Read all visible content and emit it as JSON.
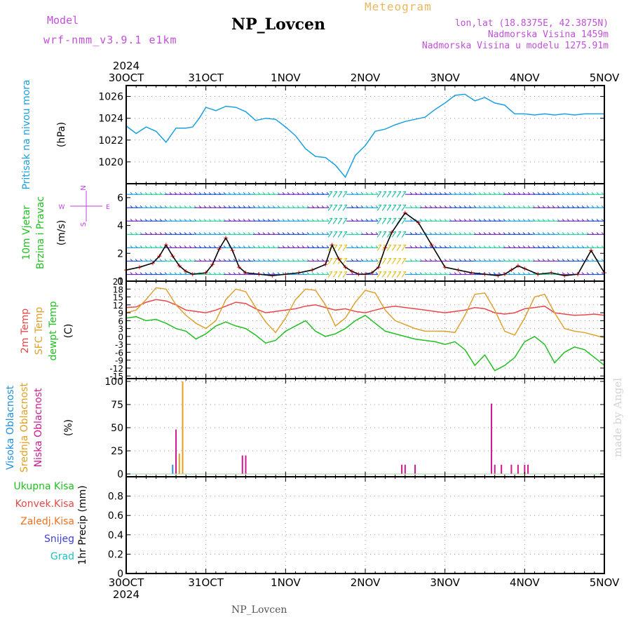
{
  "header": {
    "model_label": "Model",
    "model_name": "wrf-nmm_v3.9.1  e1km",
    "title": "NP_Lovcen",
    "meteogram_label": "Meteogram",
    "lonlat": "lon,lat (18.8375E, 42.3875N)",
    "elevation": "Nadmorska Visina 1459m",
    "model_elevation": "Nadmorska Visina u modelu 1275.91m"
  },
  "footer": {
    "station": "NP_Lovcen",
    "credit": "made by Angel"
  },
  "time_axis": {
    "year": "2024",
    "labels": [
      "30OCT",
      "31OCT",
      "1NOV",
      "2NOV",
      "3NOV",
      "4NOV",
      "5NOV"
    ]
  },
  "colors": {
    "pressure": "#1aa0e0",
    "temp_2m": "#e84848",
    "sfc_temp": "#e0a030",
    "dewpt": "#20c020",
    "high_cloud": "#2090e0",
    "mid_cloud": "#e0a020",
    "low_cloud": "#d01890",
    "wind_label": "#20c020",
    "wind_compass": "#c040e0"
  },
  "chart_data": [
    {
      "type": "line",
      "name": "pressure",
      "ylabel_parts": [
        "Pritisak na nivou mora"
      ],
      "unit": "(hPa)",
      "ylim": [
        1018,
        1027
      ],
      "yticks": [
        1020,
        1022,
        1024,
        1026
      ],
      "xlim": [
        0,
        144
      ],
      "grid": true,
      "series": [
        {
          "key": "pressure",
          "x": [
            0,
            3,
            6,
            9,
            12,
            15,
            18,
            20,
            22,
            24,
            27,
            30,
            33,
            36,
            39,
            42,
            45,
            48,
            51,
            54,
            57,
            60,
            63,
            66,
            69,
            72,
            75,
            78,
            81,
            84,
            87,
            90,
            93,
            96,
            99,
            102,
            105,
            108,
            111,
            114,
            117,
            120,
            123,
            126,
            129,
            132,
            135,
            138,
            141,
            144
          ],
          "y": [
            1023.3,
            1022.6,
            1023.2,
            1022.8,
            1021.8,
            1023.1,
            1023.1,
            1023.2,
            1024.0,
            1025.0,
            1024.7,
            1025.1,
            1025.0,
            1024.6,
            1023.8,
            1024.0,
            1023.9,
            1023.2,
            1022.4,
            1021.2,
            1020.5,
            1020.4,
            1019.7,
            1018.6,
            1020.6,
            1021.5,
            1022.8,
            1023.0,
            1023.4,
            1023.7,
            1023.9,
            1024.1,
            1024.8,
            1025.4,
            1026.1,
            1026.2,
            1025.6,
            1025.9,
            1025.4,
            1025.2,
            1024.4,
            1024.4,
            1024.3,
            1024.4,
            1024.3,
            1024.4,
            1024.3,
            1024.4,
            1024.4,
            1024.4
          ]
        }
      ]
    },
    {
      "type": "line",
      "name": "wind",
      "ylabel_parts": [
        "10m Vjetar",
        "Brzina i Pravac"
      ],
      "unit": "(m/s)",
      "compass": {
        "n": "N",
        "s": "S",
        "w": "W",
        "e": "E"
      },
      "ylim": [
        0,
        7
      ],
      "yticks": [
        0,
        2,
        4,
        6
      ],
      "xlim": [
        0,
        144
      ],
      "grid": false,
      "series": [
        {
          "key": "wind_speed",
          "x": [
            0,
            4,
            8,
            10,
            12,
            14,
            16,
            18,
            20,
            24,
            26,
            28,
            30,
            32,
            34,
            36,
            40,
            44,
            48,
            52,
            56,
            60,
            62,
            64,
            66,
            68,
            70,
            72,
            74,
            76,
            78,
            80,
            84,
            88,
            92,
            96,
            100,
            104,
            108,
            112,
            114,
            116,
            118,
            120,
            124,
            128,
            132,
            136,
            140,
            144
          ],
          "y": [
            0.8,
            1.0,
            1.3,
            1.8,
            2.6,
            1.8,
            1.1,
            0.7,
            0.5,
            0.6,
            1.2,
            2.3,
            3.1,
            2.2,
            1.0,
            0.6,
            0.5,
            0.4,
            0.5,
            0.6,
            0.8,
            1.2,
            2.6,
            1.6,
            1.0,
            0.7,
            0.5,
            0.5,
            0.6,
            1.0,
            2.4,
            3.5,
            4.9,
            4.2,
            2.6,
            1.0,
            0.8,
            0.6,
            0.5,
            0.4,
            0.5,
            0.8,
            1.1,
            0.9,
            0.5,
            0.6,
            0.4,
            0.5,
            2.2,
            0.6
          ]
        }
      ]
    },
    {
      "type": "line",
      "name": "temperature",
      "ylabel_parts": [
        "2m Temp",
        "SFC Temp",
        "dewpt Temp"
      ],
      "unit": "(C)",
      "ylim": [
        -16,
        21
      ],
      "yticks": [
        21,
        18,
        15,
        12,
        9,
        6,
        3,
        0,
        -3,
        -6,
        -9,
        -12,
        -15
      ],
      "xlim": [
        0,
        144
      ],
      "grid": true,
      "series": [
        {
          "key": "temp_2m",
          "x": [
            0,
            3,
            6,
            9,
            12,
            15,
            18,
            21,
            24,
            27,
            30,
            33,
            36,
            39,
            42,
            45,
            48,
            51,
            54,
            57,
            60,
            63,
            66,
            69,
            72,
            75,
            78,
            81,
            84,
            87,
            90,
            93,
            96,
            99,
            102,
            105,
            108,
            111,
            114,
            117,
            120,
            123,
            126,
            129,
            132,
            135,
            138,
            141,
            144
          ],
          "y": [
            11.0,
            11.2,
            13.0,
            14.0,
            13.5,
            12.0,
            10.0,
            9.5,
            9.0,
            10.0,
            11.5,
            13.0,
            12.5,
            10.5,
            9.0,
            9.5,
            10.0,
            10.5,
            11.5,
            12.0,
            11.0,
            10.0,
            10.5,
            9.5,
            9.0,
            10.0,
            11.0,
            11.5,
            11.0,
            10.5,
            10.0,
            9.5,
            9.0,
            9.5,
            10.0,
            11.0,
            10.5,
            9.0,
            8.5,
            9.0,
            10.5,
            11.0,
            11.5,
            9.0,
            8.5,
            8.0,
            8.2,
            8.5,
            8.0
          ]
        },
        {
          "key": "sfc_temp",
          "x": [
            0,
            3,
            6,
            9,
            12,
            15,
            18,
            21,
            24,
            27,
            30,
            33,
            36,
            39,
            42,
            45,
            48,
            51,
            54,
            57,
            60,
            63,
            66,
            69,
            72,
            75,
            78,
            81,
            84,
            87,
            90,
            93,
            96,
            99,
            102,
            105,
            108,
            111,
            114,
            117,
            120,
            123,
            126,
            129,
            132,
            135,
            138,
            141,
            144
          ],
          "y": [
            9.0,
            10.0,
            14.0,
            18.5,
            18.0,
            12.0,
            8.0,
            5.0,
            3.0,
            6.0,
            14.0,
            18.0,
            17.0,
            11.0,
            5.5,
            1.5,
            7.0,
            14.0,
            18.0,
            17.5,
            12.0,
            4.0,
            7.0,
            13.0,
            17.5,
            16.5,
            10.0,
            6.0,
            4.5,
            3.0,
            2.0,
            2.0,
            2.0,
            1.5,
            8.0,
            16.0,
            16.5,
            10.0,
            2.0,
            0.5,
            7.0,
            15.0,
            16.0,
            9.0,
            3.0,
            2.0,
            1.5,
            0.5,
            -0.5
          ]
        },
        {
          "key": "dewpt",
          "x": [
            0,
            3,
            6,
            9,
            12,
            15,
            18,
            21,
            24,
            27,
            30,
            33,
            36,
            39,
            42,
            45,
            48,
            51,
            54,
            57,
            60,
            63,
            66,
            69,
            72,
            75,
            78,
            81,
            84,
            87,
            90,
            93,
            96,
            99,
            102,
            105,
            108,
            111,
            114,
            117,
            120,
            123,
            126,
            129,
            132,
            135,
            138,
            141,
            144
          ],
          "y": [
            7.0,
            7.5,
            6.0,
            6.5,
            5.0,
            3.0,
            2.0,
            -1.0,
            1.0,
            4.0,
            5.5,
            4.0,
            3.0,
            0.5,
            -2.5,
            -1.5,
            2.0,
            4.0,
            6.0,
            2.0,
            0.0,
            1.0,
            3.0,
            6.0,
            8.0,
            5.0,
            2.0,
            1.0,
            0.0,
            -1.0,
            -1.5,
            -2.0,
            -3.0,
            -2.0,
            -5.0,
            -11.0,
            -7.0,
            -13.0,
            -11.0,
            -8.0,
            -2.0,
            0.0,
            -3.0,
            -10.0,
            -6.0,
            -4.0,
            -5.0,
            -8.0,
            -11.0
          ]
        }
      ]
    },
    {
      "type": "bar",
      "name": "cloud",
      "ylabel_parts": [
        "Visoka Oblacnost",
        "Srednja Oblacnost",
        "Niska Oblacnost"
      ],
      "unit": "(%)",
      "ylim": [
        -3,
        103
      ],
      "yticks": [
        0,
        25,
        50,
        75,
        100
      ],
      "xlim": [
        0,
        144
      ],
      "grid": true,
      "series": [
        {
          "key": "high_cloud",
          "x": [
            14
          ],
          "y": [
            10
          ]
        },
        {
          "key": "mid_cloud",
          "x": [
            15,
            16,
            17
          ],
          "y": [
            22,
            22,
            100
          ]
        },
        {
          "key": "low_cloud",
          "x": [
            15,
            35,
            36,
            83,
            84,
            87,
            110,
            111,
            113,
            116,
            118,
            120,
            121
          ],
          "y": [
            48,
            20,
            20,
            10,
            10,
            10,
            76,
            10,
            10,
            10,
            10,
            10,
            10
          ]
        }
      ]
    },
    {
      "type": "bar",
      "name": "precip",
      "ylabel_parts": [
        "Ukupna Kisa",
        "Konvek.Kisa",
        "Zaledj.Kisa",
        "Snijeg",
        "Grad"
      ],
      "unit": "1hr Precip (mm)",
      "ylim": [
        0,
        1.0
      ],
      "yticks": [
        0,
        0.2,
        0.4,
        0.6,
        0.8
      ],
      "xlim": [
        0,
        144
      ],
      "grid": true,
      "series": []
    }
  ]
}
